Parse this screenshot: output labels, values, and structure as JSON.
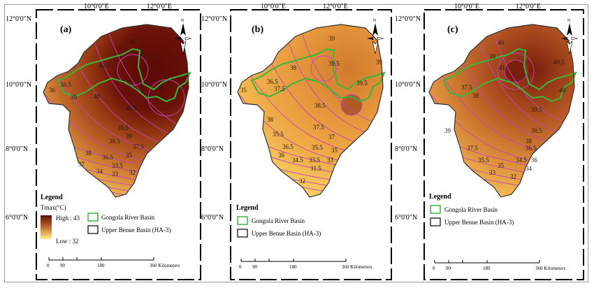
{
  "lon_labels": [
    "10°0'0\"E",
    "12°0'0\"E"
  ],
  "lat_labels": [
    "12°0'0\"N",
    "10°0'0\"N",
    "8°0'0\"N",
    "6°0'0\"N"
  ],
  "north_letter": "N",
  "colors": {
    "high": "#5e0b09",
    "mid": "#c3692c",
    "low": "#fff48a",
    "contour": "#c444b8",
    "gongola": "#36b83a",
    "benue": "#1a1a1a"
  },
  "panels": [
    {
      "id": "a",
      "label": "(a)",
      "legend_title": "Legend",
      "legend_sub": "Tmax(°C)",
      "high_label": "High : 43",
      "low_label": "Low : 32",
      "contours": [
        "42",
        "42",
        "40.5",
        "41",
        "40",
        "39",
        "38.5",
        "36",
        "39.5",
        "39",
        "38.5",
        "37.5",
        "38",
        "37",
        "36.5",
        "35",
        "34",
        "33.5",
        "33",
        "32",
        "41.5"
      ],
      "legend_items": [
        "Gongola River Basin",
        "Upper Benue Basin (HA-3)"
      ],
      "scale_ticks": [
        "0",
        "90",
        "180",
        "360 Kilometers"
      ]
    },
    {
      "id": "b",
      "label": "(b)",
      "legend_title": "Legend",
      "contours": [
        "39",
        "39.5",
        "38",
        "39",
        "39.5",
        "36.5",
        "37.5",
        "35",
        "38.5",
        "38",
        "37.5",
        "37",
        "35.5",
        "36.5",
        "36",
        "35.5",
        "34.5",
        "35",
        "33.5",
        "33",
        "31.5",
        "32"
      ],
      "legend_items": [
        "Gongola River Basin",
        "Upper Benue Basin (HA-3)"
      ],
      "scale_ticks": [
        "0",
        "90",
        "180",
        "360 Kilometers"
      ]
    },
    {
      "id": "c",
      "label": "(c)",
      "legend_title": "Legend",
      "contours": [
        "40",
        "39",
        "41",
        "40.5",
        "37.5",
        "38",
        "40",
        "39.5",
        "38.5",
        "38",
        "37.5",
        "36.5",
        "36",
        "35.5",
        "34.5",
        "34",
        "33",
        "32",
        "35",
        "39"
      ],
      "legend_items": [
        "Gongola River Basin",
        "Upper Benue Basin (HA-3)"
      ],
      "scale_ticks": [
        "0",
        "90",
        "180",
        "360 Kilometers"
      ]
    }
  ]
}
